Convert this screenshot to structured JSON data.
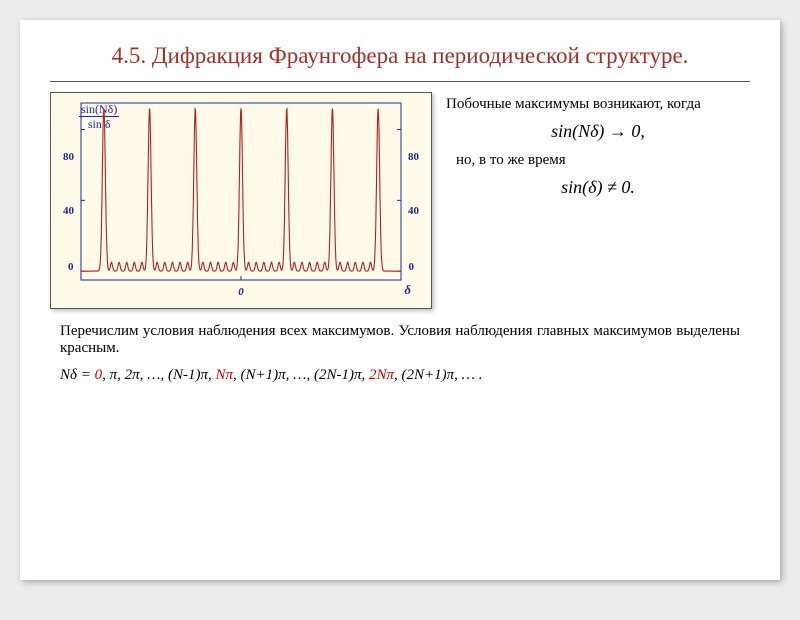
{
  "title": "4.5. Дифракция Фраунгофера на периодической структуре.",
  "right": {
    "p1": "Побочные максимумы возникают, когда",
    "formula1": "sin(Nδ) → 0,",
    "p2": "но, в то же время",
    "formula2": "sin(δ) ≠ 0."
  },
  "below": "Перечислим условия наблюдения всех максимумов. Условия наблюдения главных максимумов выделены красным.",
  "seq": {
    "lead": "Nδ = ",
    "r1": "0",
    "mid1": ", π, 2π, …, (N-1)π, ",
    "r2": "Nπ",
    "mid2": ", (N+1)π, …, (2N-1)π, ",
    "r3": "2Nπ",
    "tail": ", (2N+1)π, … ."
  },
  "chart": {
    "yfrac_num": "sin(Nδ)",
    "yfrac_den": "sin δ",
    "xlabel": "δ",
    "xcenter": "0",
    "yticks": [
      "80",
      "40",
      "0"
    ],
    "ylim": [
      -5,
      95
    ],
    "xlim": [
      -3,
      3
    ],
    "peak_height": 92,
    "peak_width": 0.08,
    "n_peaks": 7,
    "n_small": 5,
    "small_height": 5,
    "colors": {
      "bg": "#fffbe8",
      "frame": "#1a2aa0",
      "curve": "#b02020",
      "label": "#1a2aa0"
    }
  }
}
